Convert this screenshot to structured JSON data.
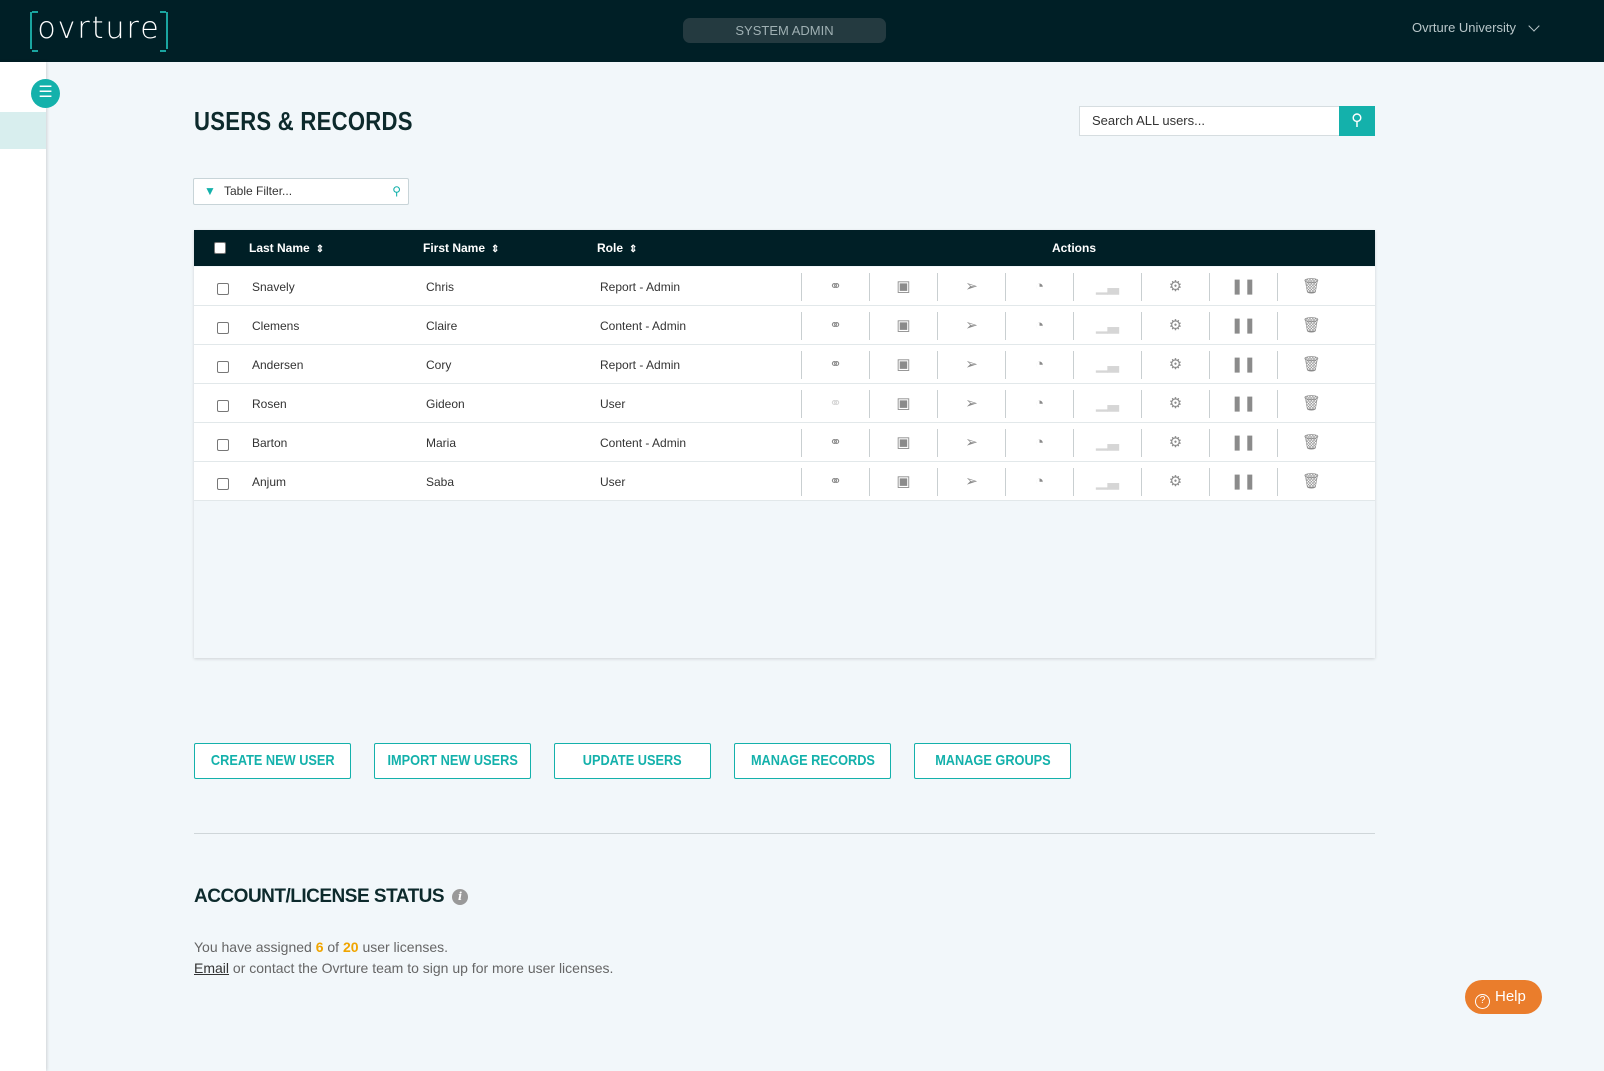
{
  "header": {
    "logo": "ovrture",
    "mode": "SYSTEM ADMIN",
    "org": "Ovrture University"
  },
  "page": {
    "title": "USERS & RECORDS",
    "search_placeholder": "Search ALL users...",
    "filter_placeholder": "Table Filter..."
  },
  "table": {
    "columns": {
      "last": "Last Name",
      "first": "First Name",
      "role": "Role",
      "actions": "Actions"
    },
    "action_icons": [
      "key-reset-icon",
      "contact-icon",
      "cursor-icon",
      "pie-report-icon",
      "bar-chart-icon",
      "gear-icon",
      "pause-icon",
      "trash-icon"
    ],
    "rows": [
      {
        "last": "Snavely",
        "first": "Chris",
        "role": "Report - Admin",
        "key_enabled": true
      },
      {
        "last": "Clemens",
        "first": "Claire",
        "role": "Content - Admin",
        "key_enabled": true
      },
      {
        "last": "Andersen",
        "first": "Cory",
        "role": "Report - Admin",
        "key_enabled": true
      },
      {
        "last": "Rosen",
        "first": "Gideon",
        "role": "User",
        "key_enabled": false
      },
      {
        "last": "Barton",
        "first": "Maria",
        "role": "Content - Admin",
        "key_enabled": true
      },
      {
        "last": "Anjum",
        "first": "Saba",
        "role": "User",
        "key_enabled": true
      }
    ]
  },
  "buttons": [
    "CREATE NEW USER",
    "IMPORT NEW USERS",
    "UPDATE USERS",
    "MANAGE RECORDS",
    "MANAGE GROUPS"
  ],
  "license": {
    "title": "ACCOUNT/LICENSE STATUS",
    "prefix": "You have assigned",
    "assigned": "6",
    "of": "of",
    "total": "20",
    "suffix": "user licenses.",
    "email_link": "Email",
    "contact_text": "or contact the Ovrture team to sign up for more user licenses."
  },
  "help": {
    "label": "Help"
  },
  "colors": {
    "accent": "#14b1ab",
    "navbar": "#001f26",
    "highlight": "#f0a500",
    "help": "#ea7d2c"
  }
}
